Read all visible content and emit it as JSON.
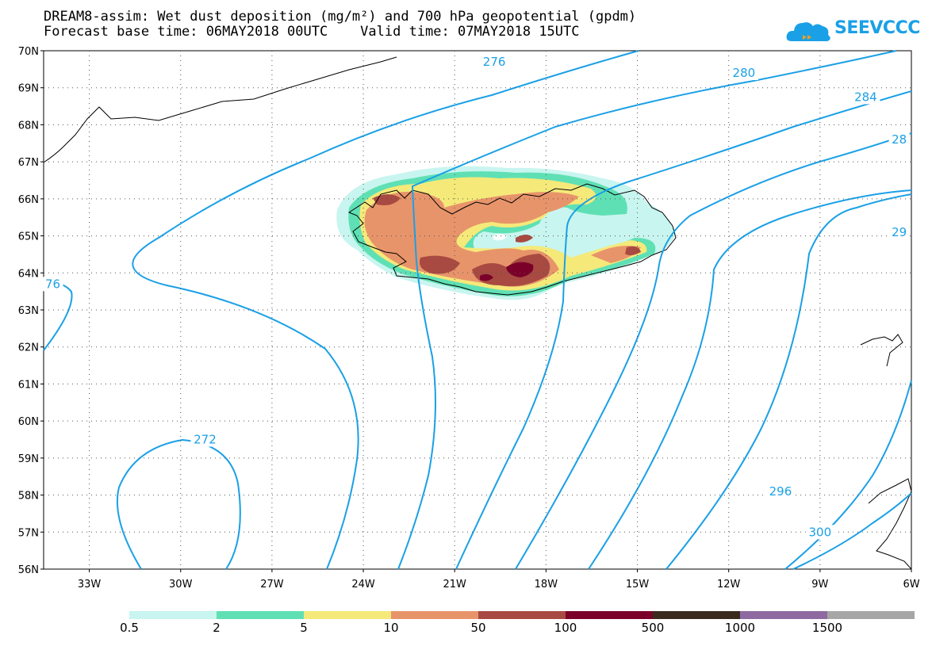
{
  "title": {
    "line1": "DREAM8-assim: Wet dust deposition (mg/m²) and 700 hPa geopotential (gpdm)",
    "line2": "Forecast base time: 06MAY2018 00UTC    Valid time: 07MAY2018 15UTC"
  },
  "logo": {
    "text": "SEEVCCC",
    "icon": "cloud-icon",
    "color": "#1aa0e6"
  },
  "map": {
    "projection": "lat-lon",
    "lon_range": [
      -34.5,
      -6
    ],
    "lat_range": [
      56,
      70
    ],
    "lat_ticks": [
      "70N",
      "69N",
      "68N",
      "67N",
      "66N",
      "65N",
      "64N",
      "63N",
      "62N",
      "61N",
      "60N",
      "59N",
      "58N",
      "57N",
      "56N"
    ],
    "lon_ticks": [
      "33W",
      "30W",
      "27W",
      "24W",
      "21W",
      "18W",
      "15W",
      "12W",
      "9W",
      "6W"
    ],
    "gridlines": "dotted",
    "contour_color": "#1aa0e6",
    "contour_labels": [
      {
        "text": "276",
        "lon": -19.7,
        "lat": 69.7
      },
      {
        "text": "280",
        "lon": -11.5,
        "lat": 69.4
      },
      {
        "text": "284",
        "lon": -7.5,
        "lat": 68.75
      },
      {
        "text": "28",
        "lon": -6.4,
        "lat": 67.6
      },
      {
        "text": "29",
        "lon": -6.4,
        "lat": 65.1
      },
      {
        "text": "76",
        "lon": -34.2,
        "lat": 63.7
      },
      {
        "text": "272",
        "lon": -29.2,
        "lat": 59.5
      },
      {
        "text": "296",
        "lon": -10.3,
        "lat": 58.1
      },
      {
        "text": "300",
        "lon": -9.0,
        "lat": 57.0
      }
    ]
  },
  "colorbar": {
    "colors": [
      "#c8f5ef",
      "#5fe0b4",
      "#f5e97a",
      "#e8946a",
      "#a84a42",
      "#7a0029",
      "#3a2a1e",
      "#8e6aa0",
      "#a6a6a6"
    ],
    "labels": [
      "0.5",
      "2",
      "5",
      "10",
      "50",
      "100",
      "500",
      "1000",
      "1500"
    ]
  }
}
